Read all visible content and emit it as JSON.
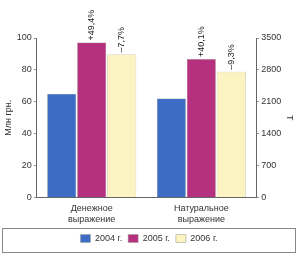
{
  "chart_data": {
    "type": "bar",
    "categories": [
      "Денежное выражение",
      "Натуральное выражение"
    ],
    "ylabel": "Млн грн.",
    "y2label": "Т",
    "ylim": [
      0,
      100
    ],
    "yticks": [
      0,
      20,
      40,
      60,
      80,
      100
    ],
    "y2lim": [
      0,
      3500
    ],
    "y2ticks": [
      0,
      700,
      1400,
      2100,
      2800,
      3500
    ],
    "grid": false,
    "legend": "bottom",
    "series": [
      {
        "name": "2004 г.",
        "color": "#3d6cc4",
        "axis": "y",
        "values": [
          65,
          null
        ]
      },
      {
        "name": "2005 г.",
        "color": "#b5307e",
        "axis": "y",
        "values": [
          97.1,
          null
        ],
        "annotations": [
          "+49,4%",
          null
        ]
      },
      {
        "name": "2006 г.",
        "color": "#fbf3c2",
        "axis": "y",
        "values": [
          89.6,
          null
        ],
        "annotations": [
          "–7,7%",
          null
        ]
      },
      {
        "name": "2004 г.",
        "color": "#3d6cc4",
        "axis": "y2",
        "values": [
          null,
          2170
        ]
      },
      {
        "name": "2005 г.",
        "color": "#b5307e",
        "axis": "y2",
        "values": [
          null,
          3040
        ],
        "annotations": [
          null,
          "+40,1%"
        ]
      },
      {
        "name": "2006 г.",
        "color": "#fbf3c2",
        "axis": "y2",
        "values": [
          null,
          2757
        ],
        "annotations": [
          null,
          "–9,3%"
        ]
      }
    ]
  }
}
